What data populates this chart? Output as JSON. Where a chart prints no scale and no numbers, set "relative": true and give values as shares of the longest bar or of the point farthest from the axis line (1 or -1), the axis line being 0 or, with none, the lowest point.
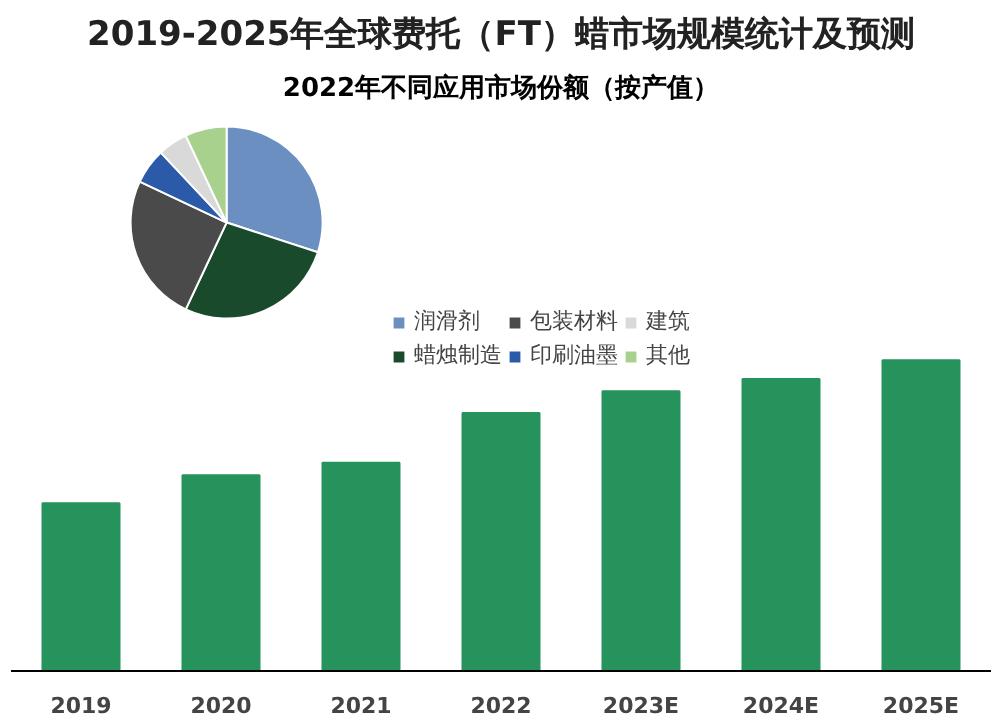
{
  "chart_data": [
    {
      "type": "bar",
      "title": "2019-2025年全球费托（FT）蜡市场规模统计及预测",
      "categories": [
        "2019",
        "2020",
        "2021",
        "2022",
        "2023E",
        "2024E",
        "2025E"
      ],
      "values": [
        0.54,
        0.63,
        0.67,
        0.83,
        0.9,
        0.94,
        1
      ],
      "color": "#26925c",
      "relative": true
    },
    {
      "type": "pie",
      "title": "2022年不同应用市场份额（按产值）",
      "categories": [
        "润滑剂",
        "蜡烛制造",
        "包装材料",
        "印刷油墨",
        "建筑",
        "其他"
      ],
      "values": [
        30,
        27,
        25,
        6,
        5,
        7
      ],
      "colors": [
        "#6a8fc0",
        "#1a4a2c",
        "#4a4a4a",
        "#2a5aa8",
        "#d9d9d9",
        "#a9d18e"
      ],
      "legend": "right"
    }
  ]
}
